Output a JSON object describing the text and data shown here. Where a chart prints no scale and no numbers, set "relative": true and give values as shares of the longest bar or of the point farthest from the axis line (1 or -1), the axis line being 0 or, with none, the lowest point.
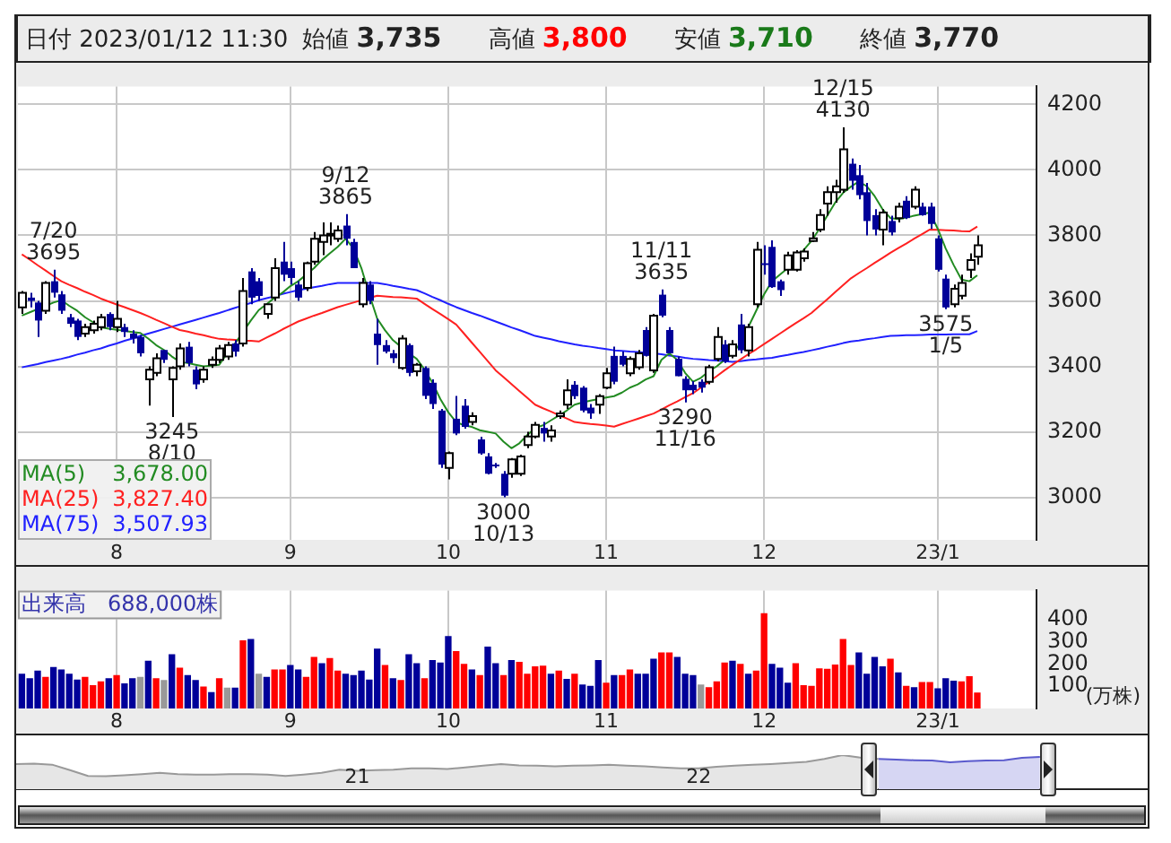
{
  "chart_data": [
    {
      "type": "candlestick",
      "title": "日付 2023/01/12 11:30",
      "annotations": [
        "始値 3,735",
        "高値 3,800",
        "安値 3,710",
        "終値 3,770",
        {
          "text": "7/20\n3695",
          "y": 3695
        },
        {
          "text": "3245\n8/10",
          "y": 3245
        },
        {
          "text": "9/12\n3865",
          "y": 3865
        },
        {
          "text": "3000\n10/13",
          "y": 3000
        },
        {
          "text": "11/11\n3635",
          "y": 3635
        },
        {
          "text": "3290\n11/16",
          "y": 3290
        },
        {
          "text": "12/15\n4130",
          "y": 4130
        },
        {
          "text": "3575\n1/5",
          "y": 3575
        }
      ],
      "categories": [
        null,
        null,
        null,
        null,
        null,
        null,
        null,
        null,
        null,
        null,
        null,
        null,
        "8",
        null,
        null,
        null,
        null,
        null,
        null,
        null,
        null,
        null,
        null,
        null,
        null,
        null,
        null,
        null,
        null,
        null,
        null,
        null,
        null,
        null,
        "9",
        null,
        null,
        null,
        null,
        null,
        null,
        null,
        null,
        null,
        null,
        null,
        null,
        null,
        null,
        null,
        null,
        null,
        null,
        null,
        "10",
        null,
        null,
        null,
        null,
        null,
        null,
        null,
        null,
        null,
        null,
        null,
        null,
        null,
        null,
        null,
        null,
        null,
        null,
        null,
        "11",
        null,
        null,
        null,
        null,
        null,
        null,
        null,
        null,
        null,
        null,
        null,
        null,
        null,
        null,
        null,
        null,
        null,
        null,
        null,
        "12",
        null,
        null,
        null,
        null,
        null,
        null,
        null,
        null,
        null,
        null,
        null,
        null,
        null,
        null,
        null,
        null,
        null,
        null,
        null,
        null,
        null,
        "23/1",
        null,
        null,
        null,
        null,
        null,
        null,
        null,
        null,
        null,
        null,
        null,
        null
      ],
      "ohlc": [
        [
          3580,
          3630,
          3560,
          3625
        ],
        [
          3610,
          3625,
          3580,
          3600
        ],
        [
          3595,
          3600,
          3490,
          3540
        ],
        [
          3570,
          3660,
          3560,
          3655
        ],
        [
          3660,
          3695,
          3610,
          3625
        ],
        [
          3620,
          3630,
          3560,
          3570
        ],
        [
          3550,
          3560,
          3520,
          3530
        ],
        [
          3540,
          3545,
          3480,
          3490
        ],
        [
          3500,
          3530,
          3490,
          3520
        ],
        [
          3510,
          3540,
          3500,
          3530
        ],
        [
          3520,
          3560,
          3510,
          3550
        ],
        [
          3560,
          3565,
          3510,
          3520
        ],
        [
          3520,
          3600,
          3505,
          3545
        ],
        [
          3520,
          3530,
          3490,
          3505
        ],
        [
          3500,
          3510,
          3470,
          3485
        ],
        [
          3490,
          3495,
          3430,
          3440
        ],
        [
          3360,
          3400,
          3280,
          3390
        ],
        [
          3380,
          3440,
          3370,
          3425
        ],
        [
          3450,
          3450,
          3410,
          3420
        ],
        [
          3360,
          3400,
          3245,
          3395
        ],
        [
          3400,
          3470,
          3390,
          3455
        ],
        [
          3460,
          3475,
          3400,
          3410
        ],
        [
          3390,
          3400,
          3330,
          3345
        ],
        [
          3360,
          3400,
          3350,
          3390
        ],
        [
          3405,
          3430,
          3395,
          3420
        ],
        [
          3420,
          3465,
          3410,
          3455
        ],
        [
          3430,
          3475,
          3420,
          3465
        ],
        [
          3470,
          3480,
          3430,
          3445
        ],
        [
          3470,
          3670,
          3460,
          3630
        ],
        [
          3690,
          3700,
          3590,
          3610
        ],
        [
          3660,
          3670,
          3600,
          3615
        ],
        [
          3560,
          3590,
          3545,
          3590
        ],
        [
          3610,
          3730,
          3600,
          3700
        ],
        [
          3720,
          3780,
          3660,
          3680
        ],
        [
          3700,
          3720,
          3650,
          3670
        ],
        [
          3650,
          3660,
          3600,
          3610
        ],
        [
          3640,
          3720,
          3630,
          3715
        ],
        [
          3720,
          3810,
          3710,
          3790
        ],
        [
          3780,
          3840,
          3740,
          3800
        ],
        [
          3800,
          3840,
          3770,
          3805
        ],
        [
          3790,
          3830,
          3780,
          3815
        ],
        [
          3830,
          3865,
          3770,
          3790
        ],
        [
          3780,
          3790,
          3700,
          3700
        ],
        [
          3590,
          3670,
          3580,
          3655
        ],
        [
          3650,
          3660,
          3590,
          3600
        ],
        [
          3500,
          3545,
          3405,
          3465
        ],
        [
          3465,
          3480,
          3440,
          3445
        ],
        [
          3440,
          3450,
          3410,
          3425
        ],
        [
          3395,
          3495,
          3390,
          3485
        ],
        [
          3465,
          3470,
          3370,
          3380
        ],
        [
          3385,
          3410,
          3370,
          3405
        ],
        [
          3395,
          3400,
          3300,
          3310
        ],
        [
          3350,
          3360,
          3270,
          3285
        ],
        [
          3265,
          3270,
          3090,
          3100
        ],
        [
          3090,
          3140,
          3055,
          3135
        ],
        [
          3240,
          3310,
          3190,
          3195
        ],
        [
          3280,
          3300,
          3210,
          3215
        ],
        [
          3230,
          3260,
          3220,
          3248
        ],
        [
          3177,
          3185,
          3130,
          3134
        ],
        [
          3125,
          3135,
          3070,
          3072
        ],
        [
          3100,
          3105,
          3090,
          3098
        ],
        [
          3072,
          3080,
          3000,
          3005
        ],
        [
          3072,
          3120,
          3060,
          3116
        ],
        [
          3072,
          3130,
          3065,
          3125
        ],
        [
          3160,
          3200,
          3150,
          3186
        ],
        [
          3186,
          3230,
          3180,
          3221
        ],
        [
          3212,
          3230,
          3170,
          3195
        ],
        [
          3186,
          3220,
          3170,
          3204
        ],
        [
          3248,
          3265,
          3240,
          3256
        ],
        [
          3283,
          3360,
          3270,
          3327
        ],
        [
          3344,
          3355,
          3300,
          3309
        ],
        [
          3335,
          3340,
          3260,
          3265
        ],
        [
          3274,
          3285,
          3240,
          3256
        ],
        [
          3283,
          3315,
          3255,
          3309
        ],
        [
          3335,
          3395,
          3330,
          3379
        ],
        [
          3432,
          3460,
          3345,
          3353
        ],
        [
          3432,
          3445,
          3400,
          3405
        ],
        [
          3379,
          3430,
          3370,
          3423
        ],
        [
          3397,
          3450,
          3390,
          3440
        ],
        [
          3511,
          3520,
          3430,
          3432
        ],
        [
          3388,
          3560,
          3380,
          3555
        ],
        [
          3619,
          3635,
          3550,
          3555
        ],
        [
          3511,
          3520,
          3440,
          3440
        ],
        [
          3423,
          3430,
          3370,
          3370
        ],
        [
          3362,
          3370,
          3290,
          3327
        ],
        [
          3344,
          3355,
          3315,
          3327
        ],
        [
          3353,
          3360,
          3320,
          3335
        ],
        [
          3353,
          3405,
          3345,
          3397
        ],
        [
          3423,
          3520,
          3415,
          3490
        ],
        [
          3467,
          3480,
          3410,
          3415
        ],
        [
          3432,
          3480,
          3425,
          3467
        ],
        [
          3528,
          3560,
          3440,
          3449
        ],
        [
          3449,
          3530,
          3430,
          3520
        ],
        [
          3590,
          3780,
          3580,
          3756
        ],
        [
          3715,
          3770,
          3680,
          3712
        ],
        [
          3765,
          3785,
          3640,
          3642
        ],
        [
          3660,
          3665,
          3615,
          3633
        ],
        [
          3695,
          3750,
          3680,
          3739
        ],
        [
          3695,
          3755,
          3690,
          3748
        ],
        [
          3730,
          3760,
          3720,
          3751
        ],
        [
          3783,
          3810,
          3780,
          3791
        ],
        [
          3818,
          3880,
          3810,
          3862
        ],
        [
          3897,
          3950,
          3860,
          3932
        ],
        [
          3932,
          3970,
          3900,
          3950
        ],
        [
          3940,
          4130,
          3930,
          4063
        ],
        [
          4019,
          4035,
          3940,
          3967
        ],
        [
          3984,
          4015,
          3910,
          3923
        ],
        [
          3932,
          3960,
          3800,
          3844
        ],
        [
          3862,
          3880,
          3800,
          3818
        ],
        [
          3818,
          3880,
          3770,
          3870
        ],
        [
          3844,
          3860,
          3800,
          3809
        ],
        [
          3853,
          3900,
          3840,
          3888
        ],
        [
          3906,
          3920,
          3850,
          3853
        ],
        [
          3888,
          3950,
          3880,
          3940
        ],
        [
          3888,
          3900,
          3860,
          3862
        ],
        [
          3888,
          3900,
          3820,
          3835
        ],
        [
          3791,
          3800,
          3690,
          3695
        ],
        [
          3668,
          3680,
          3575,
          3580
        ],
        [
          3590,
          3650,
          3580,
          3637
        ],
        [
          3616,
          3680,
          3605,
          3655
        ],
        [
          3695,
          3745,
          3670,
          3725
        ],
        [
          3735,
          3800,
          3710,
          3770
        ],
        null,
        null,
        null,
        null,
        null,
        null,
        null
      ],
      "colors": [
        "#ffffff",
        "#000099",
        "#000099",
        "#ffffff",
        "#000099",
        "#000099",
        "#000099",
        "#000099",
        "#ffffff",
        "#ffffff",
        "#ffffff",
        "#000099",
        "#ffffff",
        "#000099",
        "#000099",
        "#000099",
        "#ffffff",
        "#ffffff",
        "#000099",
        "#ffffff",
        "#ffffff",
        "#000099",
        "#000099",
        "#ffffff",
        "#ffffff",
        "#ffffff",
        "#ffffff",
        "#000099",
        "#ffffff",
        "#000099",
        "#000099",
        "#ffffff",
        "#ffffff",
        "#000099",
        "#000099",
        "#000099",
        "#ffffff",
        "#ffffff",
        "#ffffff",
        "#ffffff",
        "#ffffff",
        "#000099",
        "#000099",
        "#ffffff",
        "#000099",
        "#000099",
        "#000099",
        "#000099",
        "#ffffff",
        "#000099",
        "#ffffff",
        "#000099",
        "#000099",
        "#000099",
        "#ffffff",
        "#000099",
        "#000099",
        "#ffffff",
        "#000099",
        "#000099",
        "#000099",
        "#000099",
        "#ffffff",
        "#ffffff",
        "#ffffff",
        "#ffffff",
        "#000099",
        "#ffffff",
        "#ffffff",
        "#ffffff",
        "#000099",
        "#000099",
        "#000099",
        "#ffffff",
        "#ffffff",
        "#000099",
        "#000099",
        "#ffffff",
        "#ffffff",
        "#000099",
        "#ffffff",
        "#000099",
        "#000099",
        "#000099",
        "#000099",
        "#000099",
        "#000099",
        "#ffffff",
        "#ffffff",
        "#000099",
        "#ffffff",
        "#000099",
        "#ffffff",
        "#ffffff",
        "#000099",
        "#000099",
        "#000099",
        "#ffffff",
        "#ffffff",
        "#ffffff",
        "#ffffff",
        "#ffffff",
        "#ffffff",
        "#ffffff",
        "#ffffff",
        "#000099",
        "#000099",
        "#000099",
        "#000099",
        "#ffffff",
        "#000099",
        "#ffffff",
        "#000099",
        "#ffffff",
        "#000099",
        "#000099",
        "#000099",
        "#000099",
        "#ffffff",
        "#ffffff",
        "#ffffff",
        "#ffffff",
        null,
        null,
        null,
        null,
        null,
        null,
        null
      ],
      "series": [
        {
          "type": "line",
          "name": "MA(5) 3,678.00",
          "color": "#228b22",
          "values": [
            3555,
            3565,
            3575,
            3585,
            3595,
            3602,
            3585,
            3570,
            3550,
            3535,
            3519,
            3515,
            3512,
            3508,
            3505,
            3502,
            3485,
            3465,
            3450,
            3430,
            3414,
            3410,
            3405,
            3400,
            3402,
            3405,
            3440,
            3470,
            3505,
            3540,
            3572,
            3590,
            3610,
            3625,
            3645,
            3660,
            3680,
            3700,
            3725,
            3745,
            3765,
            3790,
            3760,
            3700,
            3620,
            3546,
            3510,
            3480,
            3460,
            3440,
            3423,
            3390,
            3350,
            3300,
            3260,
            3230,
            3220,
            3215,
            3205,
            3200,
            3195,
            3170,
            3150,
            3165,
            3190,
            3212,
            3220,
            3235,
            3250,
            3265,
            3283,
            3290,
            3295,
            3300,
            3305,
            3309,
            3320,
            3335,
            3345,
            3360,
            3370,
            3420,
            3440,
            3420,
            3380,
            3353,
            3365,
            3385,
            3400,
            3420,
            3440,
            3470,
            3520,
            3570,
            3620,
            3660,
            3680,
            3700,
            3725,
            3755,
            3783,
            3820,
            3860,
            3900,
            3930,
            3949,
            3965,
            3950,
            3920,
            3880,
            3853,
            3850,
            3855,
            3860,
            3865,
            3870,
            3820,
            3760,
            3710,
            3665,
            3660,
            3678,
            null,
            null,
            null,
            null,
            null,
            null,
            null
          ]
        },
        {
          "type": "line",
          "name": "MA(25) 3,827.40",
          "color": "#ff2020",
          "values": [
            3742,
            3726,
            3709,
            3693,
            3676,
            3660,
            3649,
            3639,
            3628,
            3618,
            3607,
            3598,
            3589,
            3581,
            3572,
            3563,
            3553,
            3542,
            3532,
            3521,
            3511,
            3506,
            3500,
            3495,
            3489,
            3484,
            3482,
            3481,
            3479,
            3478,
            3476,
            3488,
            3500,
            3513,
            3525,
            3537,
            3546,
            3555,
            3563,
            3572,
            3581,
            3588,
            3595,
            3602,
            3609,
            3616,
            3614,
            3612,
            3611,
            3609,
            3607,
            3591,
            3575,
            3560,
            3544,
            3528,
            3500,
            3472,
            3444,
            3416,
            3388,
            3367,
            3346,
            3325,
            3304,
            3283,
            3272,
            3262,
            3251,
            3241,
            3230,
            3227,
            3224,
            3222,
            3219,
            3216,
            3224,
            3232,
            3240,
            3248,
            3256,
            3268,
            3281,
            3293,
            3306,
            3318,
            3335,
            3353,
            3370,
            3388,
            3405,
            3421,
            3437,
            3452,
            3468,
            3484,
            3500,
            3516,
            3532,
            3547,
            3563,
            3584,
            3605,
            3627,
            3648,
            3669,
            3685,
            3700,
            3716,
            3731,
            3747,
            3761,
            3775,
            3790,
            3804,
            3818,
            3817,
            3816,
            3815,
            3813,
            3812,
            3827,
            null,
            null,
            null,
            null,
            null,
            null,
            null
          ]
        },
        {
          "type": "line",
          "name": "MA(75) 3,507.93",
          "color": "#2020ff",
          "values": [
            3397,
            3402,
            3407,
            3413,
            3418,
            3423,
            3429,
            3436,
            3442,
            3449,
            3455,
            3463,
            3470,
            3478,
            3485,
            3493,
            3500,
            3507,
            3514,
            3521,
            3528,
            3535,
            3542,
            3549,
            3556,
            3563,
            3571,
            3579,
            3586,
            3594,
            3602,
            3608,
            3614,
            3621,
            3627,
            3633,
            3637,
            3642,
            3646,
            3651,
            3655,
            3655,
            3655,
            3655,
            3655,
            3655,
            3651,
            3646,
            3642,
            3637,
            3633,
            3623,
            3612,
            3602,
            3591,
            3581,
            3572,
            3563,
            3555,
            3546,
            3537,
            3528,
            3519,
            3511,
            3502,
            3493,
            3488,
            3483,
            3477,
            3472,
            3467,
            3463,
            3460,
            3456,
            3453,
            3449,
            3447,
            3445,
            3444,
            3442,
            3440,
            3437,
            3433,
            3430,
            3426,
            3423,
            3421,
            3419,
            3418,
            3416,
            3414,
            3416,
            3419,
            3421,
            3424,
            3426,
            3431,
            3435,
            3440,
            3444,
            3449,
            3454,
            3460,
            3465,
            3471,
            3476,
            3479,
            3483,
            3486,
            3490,
            3493,
            3494,
            3495,
            3495,
            3496,
            3497,
            3497,
            3497,
            3498,
            3498,
            3498,
            3508,
            null,
            null,
            null,
            null,
            null,
            null,
            null
          ]
        }
      ],
      "ylim": [
        2870,
        4255
      ],
      "yticks": [
        3000,
        3200,
        3400,
        3600,
        3800,
        4000,
        4200
      ],
      "grid": true,
      "legend": "bottom left"
    },
    {
      "type": "bar",
      "title": "出来高　688,000株",
      "ylabel": "(万株)",
      "categories": [
        null,
        null,
        null,
        null,
        null,
        null,
        null,
        null,
        null,
        null,
        null,
        null,
        "8",
        null,
        null,
        null,
        null,
        null,
        null,
        null,
        null,
        null,
        null,
        null,
        null,
        null,
        null,
        null,
        null,
        null,
        null,
        null,
        null,
        null,
        "9",
        null,
        null,
        null,
        null,
        null,
        null,
        null,
        null,
        null,
        null,
        null,
        null,
        null,
        null,
        null,
        null,
        null,
        null,
        null,
        "10",
        null,
        null,
        null,
        null,
        null,
        null,
        null,
        null,
        null,
        null,
        null,
        null,
        null,
        null,
        null,
        null,
        null,
        null,
        null,
        "11",
        null,
        null,
        null,
        null,
        null,
        null,
        null,
        null,
        null,
        null,
        null,
        null,
        null,
        null,
        null,
        null,
        null,
        null,
        null,
        "12",
        null,
        null,
        null,
        null,
        null,
        null,
        null,
        null,
        null,
        null,
        null,
        null,
        null,
        null,
        null,
        null,
        null,
        null,
        null,
        null,
        null,
        "23/1",
        null,
        null,
        null,
        null,
        null,
        null,
        null,
        null,
        null,
        null,
        null,
        null
      ],
      "values": [
        153,
        133,
        167,
        139,
        184,
        173,
        153,
        127,
        139,
        102,
        119,
        133,
        147,
        110,
        133,
        139,
        212,
        133,
        125,
        241,
        181,
        147,
        125,
        96,
        71,
        133,
        91,
        91,
        303,
        309,
        153,
        139,
        173,
        173,
        193,
        173,
        139,
        229,
        201,
        224,
        167,
        153,
        147,
        167,
        127,
        266,
        193,
        133,
        125,
        241,
        201,
        133,
        215,
        204,
        323,
        255,
        198,
        173,
        147,
        275,
        201,
        147,
        215,
        207,
        153,
        187,
        190,
        153,
        167,
        130,
        153,
        105,
        99,
        215,
        113,
        147,
        147,
        173,
        153,
        153,
        221,
        249,
        249,
        229,
        153,
        147,
        105,
        93,
        119,
        204,
        212,
        198,
        153,
        167,
        425,
        198,
        181,
        113,
        201,
        102,
        99,
        178,
        176,
        195,
        309,
        193,
        249,
        153,
        229,
        187,
        221,
        159,
        99,
        93,
        116,
        116,
        88,
        133,
        122,
        119,
        142,
        69,
        null,
        null,
        null,
        null,
        null,
        null,
        null
      ],
      "colors": [
        "#000099",
        "#000099",
        "#000099",
        "#ff0000",
        "#000099",
        "#000099",
        "#000099",
        "#000099",
        "#ff0000",
        "#ff0000",
        "#ff0000",
        "#000099",
        "#ff0000",
        "#000099",
        "#000099",
        "#999999",
        "#000099",
        "#ff0000",
        "#999999",
        "#000099",
        "#ff0000",
        "#000099",
        "#000099",
        "#ff0000",
        "#000099",
        "#ff0000",
        "#999999",
        "#000099",
        "#ff0000",
        "#000099",
        "#999999",
        "#000099",
        "#ff0000",
        "#ff0000",
        "#000099",
        "#000099",
        "#ff0000",
        "#ff0000",
        "#000099",
        "#ff0000",
        "#ff0000",
        "#000099",
        "#000099",
        "#000099",
        "#000099",
        "#000099",
        "#ff0000",
        "#000099",
        "#ff0000",
        "#000099",
        "#000099",
        "#ff0000",
        "#000099",
        "#000099",
        "#000099",
        "#ff0000",
        "#ff0000",
        "#000099",
        "#ff0000",
        "#000099",
        "#000099",
        "#ff0000",
        "#000099",
        "#ff0000",
        "#ff0000",
        "#ff0000",
        "#ff0000",
        "#000099",
        "#ff0000",
        "#000099",
        "#ff0000",
        "#000099",
        "#000099",
        "#000099",
        "#ff0000",
        "#000099",
        "#ff0000",
        "#ff0000",
        "#000099",
        "#000099",
        "#000099",
        "#ff0000",
        "#ff0000",
        "#000099",
        "#000099",
        "#000099",
        "#999999",
        "#ff0000",
        "#ff0000",
        "#ff0000",
        "#000099",
        "#ff0000",
        "#000099",
        "#ff0000",
        "#ff0000",
        "#000099",
        "#000099",
        "#000099",
        "#ff0000",
        "#ff0000",
        "#ff0000",
        "#ff0000",
        "#ff0000",
        "#ff0000",
        "#ff0000",
        "#ff0000",
        "#000099",
        "#000099",
        "#000099",
        "#000099",
        "#ff0000",
        "#000099",
        "#ff0000",
        "#000099",
        "#ff0000",
        "#ff0000",
        "#000099",
        "#000099",
        "#000099",
        "#ff0000",
        "#ff0000",
        "#ff0000",
        null,
        null,
        null,
        null,
        null,
        null,
        null
      ],
      "ylim": [
        0,
        530
      ],
      "yticks": [
        100,
        200,
        300,
        400
      ],
      "grid": "x"
    },
    {
      "type": "area",
      "relative": true,
      "categories": [
        null,
        null,
        null,
        null,
        null,
        null,
        null,
        null,
        null,
        null,
        null,
        null,
        null,
        null,
        null,
        null,
        null,
        null,
        null,
        "21",
        null,
        null,
        null,
        null,
        null,
        null,
        null,
        null,
        null,
        null,
        null,
        null,
        null,
        null,
        null,
        null,
        null,
        null,
        "22",
        null,
        null,
        null,
        null,
        null,
        null,
        null,
        null,
        null,
        null,
        null,
        null,
        null,
        null,
        null,
        null,
        null,
        null,
        null,
        null,
        null,
        null,
        null,
        null,
        null
      ],
      "series": [
        {
          "color": "#999999",
          "values": [
            0.74,
            0.75,
            0.72,
            0.56,
            0.39,
            0.38,
            0.41,
            0.44,
            0.48,
            0.44,
            0.43,
            0.43,
            0.44,
            0.44,
            0.43,
            0.39,
            0.43,
            0.48,
            0.57,
            0.54,
            0.56,
            0.57,
            0.61,
            0.61,
            0.59,
            0.64,
            0.69,
            0.74,
            0.7,
            0.69,
            0.67,
            0.69,
            0.7,
            0.72,
            0.69,
            0.67,
            0.64,
            0.61,
            0.61,
            0.66,
            0.69,
            0.72,
            0.74,
            0.77,
            0.8,
            0.89,
            1,
            0.93,
            0.89,
            null,
            null,
            null,
            null,
            null,
            null,
            null,
            null,
            null,
            null,
            null,
            null,
            null,
            null,
            null
          ]
        },
        {
          "color": "#5a5acd",
          "values": [
            null,
            null,
            null,
            null,
            null,
            null,
            null,
            null,
            null,
            null,
            null,
            null,
            null,
            null,
            null,
            null,
            null,
            null,
            null,
            null,
            null,
            null,
            null,
            null,
            null,
            null,
            null,
            null,
            null,
            null,
            null,
            null,
            null,
            null,
            null,
            null,
            null,
            null,
            null,
            null,
            null,
            null,
            null,
            null,
            null,
            null,
            null,
            null,
            0.89,
            0.87,
            0.85,
            0.84,
            0.79,
            0.82,
            0.84,
            0.85,
            0.92,
            0.95,
            null,
            null,
            null,
            null,
            null,
            null
          ]
        }
      ]
    }
  ]
}
